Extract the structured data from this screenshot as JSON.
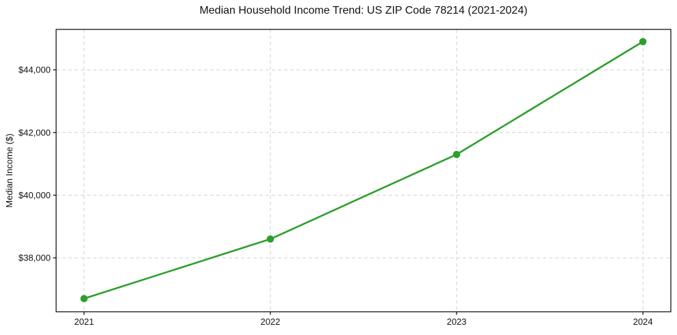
{
  "chart_data": {
    "type": "line",
    "title": "Median Household Income Trend: US ZIP Code 78214 (2021-2024)",
    "xlabel": "",
    "ylabel": "Median Income ($)",
    "x": [
      2021,
      2022,
      2023,
      2024
    ],
    "series": [
      {
        "name": "Median Household Income",
        "values": [
          36700,
          38600,
          41300,
          44900
        ]
      }
    ],
    "x_tick_labels": [
      "2021",
      "2022",
      "2023",
      "2024"
    ],
    "y_ticks": [
      38000,
      40000,
      42000,
      44000
    ],
    "y_tick_labels": [
      "$38,000",
      "$40,000",
      "$42,000",
      "$44,000"
    ],
    "xlim": [
      2020.85,
      2024.15
    ],
    "ylim": [
      36280,
      45290
    ],
    "grid": true,
    "grid_style": "dashed",
    "legend": false,
    "line_color": "#2ca02c",
    "marker": "circle",
    "grid_color": "#d0d0d0",
    "axis_color": "#000000",
    "text_color": "#111111",
    "background": "#ffffff"
  }
}
